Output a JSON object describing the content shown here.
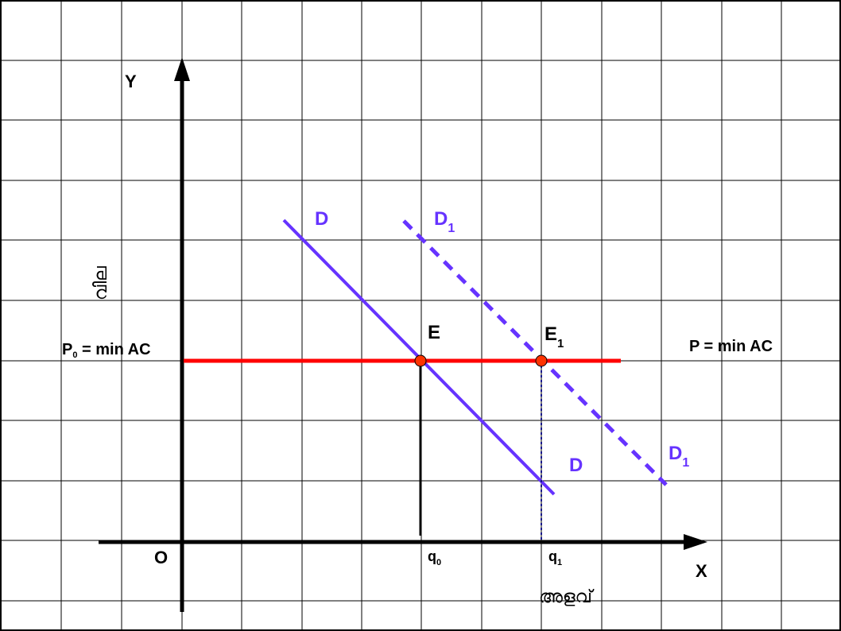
{
  "diagram": {
    "axes": {
      "y_label": "Y",
      "x_label": "X",
      "origin_label": "O",
      "y_title": "വില",
      "x_title": "അളവ്"
    },
    "price_line": {
      "left_label_main": "P",
      "left_label_sub": "0",
      "left_label_rest": " = min AC",
      "right_label": "P = min AC",
      "color": "#ff0000"
    },
    "demand": {
      "d_label_top": "D",
      "d_label_bottom": "D",
      "d1_label_top_main": "D",
      "d1_label_top_sub": "1",
      "d1_label_bottom_main": "D",
      "d1_label_bottom_sub": "1",
      "color": "#6633ff"
    },
    "equilibria": {
      "e_label": "E",
      "e1_label_main": "E",
      "e1_label_sub": "1",
      "point_color": "#ff3300"
    },
    "quantities": {
      "q0_main": "q",
      "q0_sub": "0",
      "q1_main": "q",
      "q1_sub": "1"
    },
    "colors": {
      "grid": "#000000",
      "axis": "#000000",
      "background": "#ffffff"
    }
  }
}
